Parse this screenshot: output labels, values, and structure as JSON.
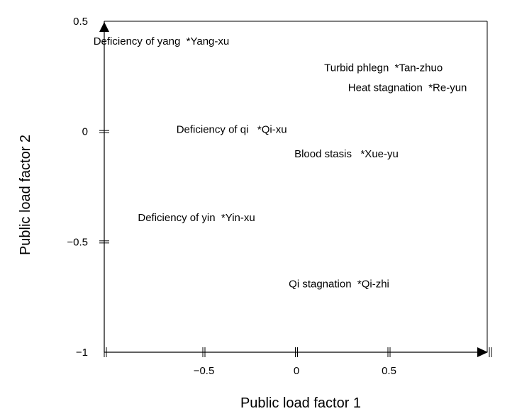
{
  "chart_data": {
    "type": "scatter",
    "title": "",
    "xlabel": "Public load factor 1",
    "ylabel": "Public load factor 2",
    "xlim": [
      -1,
      1
    ],
    "ylim": [
      -1,
      0.5
    ],
    "x_ticks": [
      {
        "value": -0.5,
        "label": "−0.5"
      },
      {
        "value": 0,
        "label": "0"
      },
      {
        "value": 0.5,
        "label": "0.5"
      }
    ],
    "y_ticks": [
      {
        "value": 0.5,
        "label": "0.5"
      },
      {
        "value": 0,
        "label": "0"
      },
      {
        "value": -0.5,
        "label": "−0.5"
      },
      {
        "value": -1,
        "label": "−1"
      }
    ],
    "grid": false,
    "points": [
      {
        "label": "Deficiency of yang  *Yang-xu",
        "x": -0.73,
        "y": 0.41
      },
      {
        "label": "Turbid phlegn  *Tan-zhuo",
        "x": 0.47,
        "y": 0.29
      },
      {
        "label": "Heat stagnation  *Re-yun",
        "x": 0.6,
        "y": 0.2
      },
      {
        "label": "Deficiency of qi   *Qi-xu",
        "x": -0.35,
        "y": 0.01
      },
      {
        "label": "Blood stasis   *Xue-yu",
        "x": 0.27,
        "y": -0.1
      },
      {
        "label": "Deficiency of yin  *Yin-xu",
        "x": -0.54,
        "y": -0.39
      },
      {
        "label": "Qi stagnation  *Qi-zhi",
        "x": 0.23,
        "y": -0.69
      }
    ]
  }
}
